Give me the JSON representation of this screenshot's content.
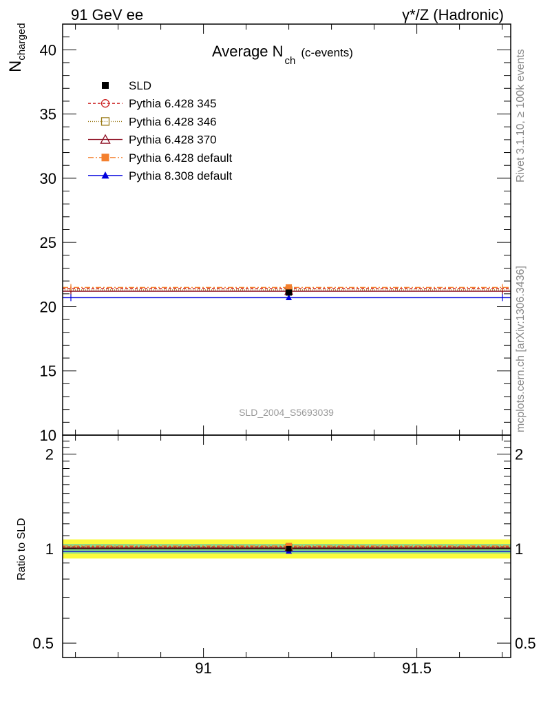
{
  "header": {
    "left": "91 GeV ee",
    "right": "γ*/Z (Hadronic)"
  },
  "side_text": {
    "upper": "Rivet 3.1.10, ≥ 100k events",
    "lower": "mcplots.cern.ch [arXiv:1306.3436]"
  },
  "main_panel": {
    "title_main": "Average N",
    "title_sub": "ch",
    "title_suffix": "(c-events)",
    "ylabel": "N",
    "ylabel_sub": "charged",
    "watermark": "SLD_2004_S5693039"
  },
  "ratio_panel": {
    "ylabel": "Ratio to SLD"
  },
  "colors": {
    "SLD": "#000000",
    "p345": "#cc2222",
    "p346": "#9a7a16",
    "p370": "#8b0a1e",
    "p64def": "#f4802e",
    "p83def": "#0000dd",
    "band_outer": "#fafa3c",
    "band_inner": "#8ad88a"
  },
  "chart_data": [
    {
      "type": "scatter",
      "panel": "main",
      "xlim": [
        90.67,
        91.72
      ],
      "ylim": [
        10,
        42
      ],
      "x_ticks": [
        91,
        91.5
      ],
      "y_ticks": [
        10,
        15,
        20,
        25,
        30,
        35,
        40
      ],
      "legend_position": "top-left",
      "series": [
        {
          "name": "SLD",
          "key": "SLD",
          "x": 91.2,
          "y": 21.1,
          "style": "marker-only",
          "marker": "square-filled"
        },
        {
          "name": "Pythia 6.428 345",
          "key": "p345",
          "x_range": [
            90.67,
            91.72
          ],
          "y": 21.4,
          "marker": "circle-open",
          "dash": "4,3"
        },
        {
          "name": "Pythia 6.428 346",
          "key": "p346",
          "x_range": [
            90.67,
            91.72
          ],
          "y": 21.3,
          "marker": "square-open",
          "dash": "1,2"
        },
        {
          "name": "Pythia 6.428 370",
          "key": "p370",
          "x_range": [
            90.67,
            91.72
          ],
          "y": 21.2,
          "marker": "triangle-open",
          "dash": ""
        },
        {
          "name": "Pythia 6.428 default",
          "key": "p64def",
          "x_range": [
            90.67,
            91.72
          ],
          "y": 21.5,
          "marker": "square-filled",
          "dash": "8,3,2,3"
        },
        {
          "name": "Pythia 8.308 default",
          "key": "p83def",
          "x_range": [
            90.67,
            91.72
          ],
          "y": 20.7,
          "marker": "triangle-filled",
          "dash": ""
        }
      ]
    },
    {
      "type": "scatter",
      "panel": "ratio",
      "xlim": [
        90.67,
        91.72
      ],
      "ylim": [
        0.45,
        2.3
      ],
      "scale": "log",
      "y_ticks": [
        0.5,
        1,
        2
      ],
      "bands": [
        {
          "lo": 0.93,
          "hi": 1.07,
          "key": "band_outer"
        },
        {
          "lo": 0.965,
          "hi": 1.035,
          "key": "band_inner"
        }
      ],
      "series": [
        {
          "name": "SLD",
          "key": "SLD",
          "y": 1.0
        },
        {
          "name": "Pythia 6.428 345",
          "key": "p345",
          "y": 1.014
        },
        {
          "name": "Pythia 6.428 346",
          "key": "p346",
          "y": 1.01
        },
        {
          "name": "Pythia 6.428 370",
          "key": "p370",
          "y": 1.005
        },
        {
          "name": "Pythia 6.428 default",
          "key": "p64def",
          "y": 1.02
        },
        {
          "name": "Pythia 8.308 default",
          "key": "p83def",
          "y": 0.981
        }
      ]
    }
  ]
}
